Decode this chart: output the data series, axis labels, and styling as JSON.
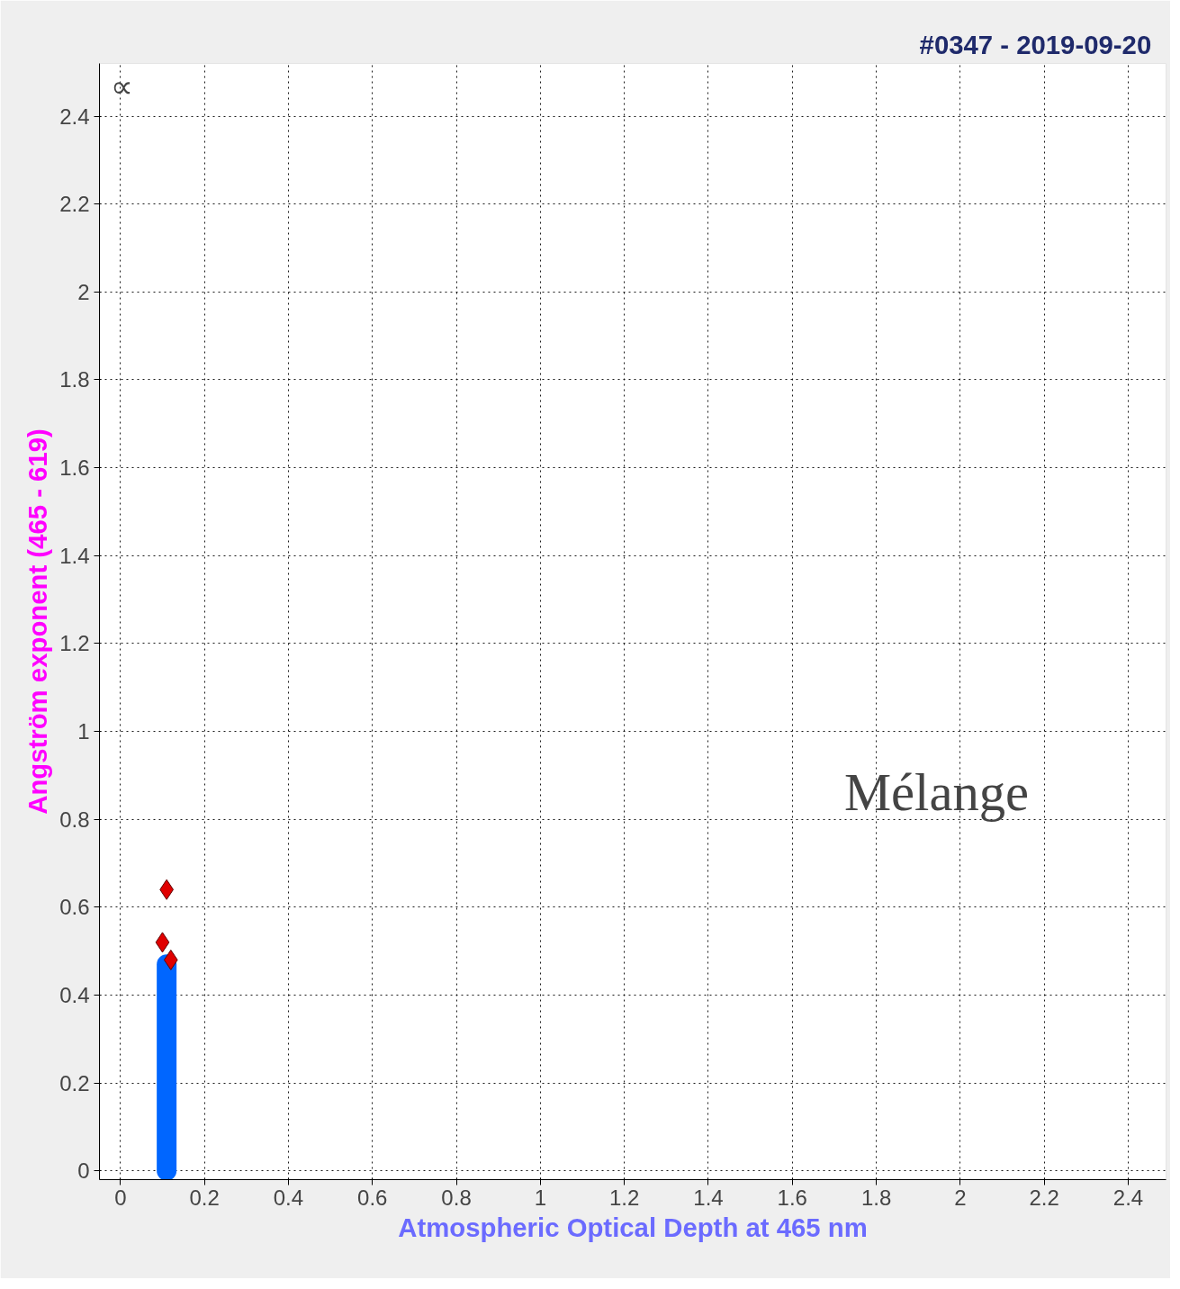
{
  "chart_data": {
    "type": "scatter",
    "title": "#0347  -  2019-09-20",
    "xlabel": "Atmospheric Optical Depth at 465 nm",
    "ylabel": "Angström exponent (465 - 619)",
    "xlim": [
      -0.05,
      2.49
    ],
    "ylim": [
      -0.02,
      2.52
    ],
    "xticks": [
      0,
      0.2,
      0.4,
      0.6,
      0.8,
      1,
      1.2,
      1.4,
      1.6,
      1.8,
      2,
      2.2,
      2.4
    ],
    "yticks": [
      0,
      0.2,
      0.4,
      0.6,
      0.8,
      1,
      1.2,
      1.4,
      1.6,
      1.8,
      2,
      2.2,
      2.4
    ],
    "grid": true,
    "series": [
      {
        "type": "line",
        "color": "#0066ff",
        "x": [
          0.11,
          0.11
        ],
        "values": [
          0,
          0.47
        ]
      },
      {
        "marker": "diamond",
        "color": "#e00000",
        "x": [
          0.11,
          0.1,
          0.12
        ],
        "values": [
          0.64,
          0.52,
          0.48
        ]
      }
    ],
    "annotations": [
      "Mélange",
      "∝"
    ]
  }
}
